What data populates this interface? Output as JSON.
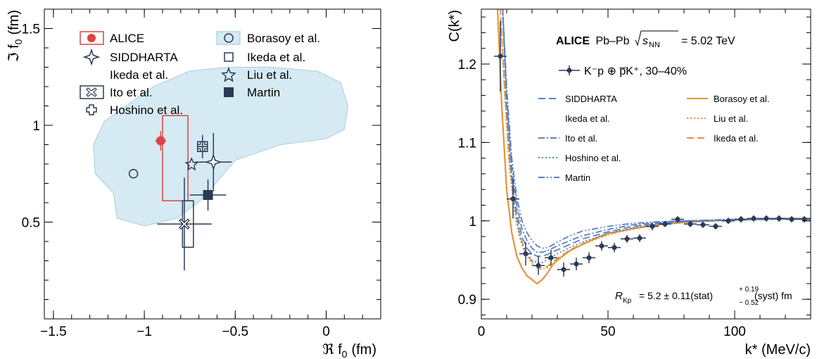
{
  "colors": {
    "alice": "#d94545",
    "data_markers": "#2b3a55",
    "borasoy_band": "#d6eaf3",
    "borasoy_band_edge": "#a9cce0",
    "theory_blue": "#5b82c2",
    "theory_orange": "#e2953b"
  },
  "chart_data": [
    {
      "type": "scatter",
      "xlabel": "ℜ f",
      "xlabel_sub": "0",
      "xlabel_unit": "(fm)",
      "ylabel": "ℑ f",
      "ylabel_sub": "0",
      "ylabel_unit": "(fm)",
      "xlim": [
        -1.55,
        0.3
      ],
      "ylim": [
        0.0,
        1.6
      ],
      "xticks": [
        -1.5,
        -1,
        -0.5,
        0
      ],
      "xtick_labels": [
        "−1.5",
        "−1",
        "−0.5",
        "0"
      ],
      "yticks": [
        0.5,
        1,
        1.5
      ],
      "ytick_labels": [
        "0.5",
        "1",
        "1.5"
      ],
      "legend": [
        {
          "label": "ALICE",
          "marker": "filled-circle-box"
        },
        {
          "label": "SIDDHARTA",
          "marker": "star4"
        },
        {
          "label": "Ikeda et al.",
          "marker": "none"
        },
        {
          "label": "Ito et al.",
          "marker": "cross-box"
        },
        {
          "label": "Hoshino et al.",
          "marker": "open-cross"
        },
        {
          "label": "Borasoy et al.",
          "marker": "band-circle"
        },
        {
          "label": "Ikeda et al.",
          "marker": "open-square"
        },
        {
          "label": "Liu et al.",
          "marker": "open-star"
        },
        {
          "label": "Martin",
          "marker": "filled-square"
        }
      ],
      "band_outline": [
        [
          -1.17,
          0.65
        ],
        [
          -1.27,
          0.75
        ],
        [
          -1.28,
          0.9
        ],
        [
          -1.22,
          1.02
        ],
        [
          -1.1,
          1.1
        ],
        [
          -0.95,
          1.2
        ],
        [
          -0.75,
          1.28
        ],
        [
          -0.55,
          1.3
        ],
        [
          -0.3,
          1.3
        ],
        [
          -0.05,
          1.28
        ],
        [
          0.08,
          1.22
        ],
        [
          0.12,
          1.1
        ],
        [
          0.1,
          0.98
        ],
        [
          0.0,
          0.93
        ],
        [
          -0.25,
          0.9
        ],
        [
          -0.5,
          0.82
        ],
        [
          -0.68,
          0.62
        ],
        [
          -0.82,
          0.52
        ],
        [
          -1.0,
          0.48
        ],
        [
          -1.15,
          0.52
        ],
        [
          -1.17,
          0.65
        ]
      ],
      "points": [
        {
          "name": "ALICE",
          "x": -0.91,
          "y": 0.92,
          "marker": "filled-circle",
          "ex": 0.03,
          "ey": 0.05,
          "box": {
            "x0": -0.9,
            "x1": -0.76,
            "y0": 0.61,
            "y1": 1.05
          }
        },
        {
          "name": "Borasoy et al.",
          "x": -1.06,
          "y": 0.75,
          "marker": "open-circle"
        },
        {
          "name": "SIDDHARTA",
          "x": -0.62,
          "y": 0.81,
          "marker": "star4",
          "ex": 0.1,
          "ey": 0.15
        },
        {
          "name": "Ikeda et al.",
          "x": -0.68,
          "y": 0.89,
          "marker": "open-square",
          "ex": 0.03,
          "ey": 0.06
        },
        {
          "name": "Liu et al.",
          "x": -0.74,
          "y": 0.8,
          "marker": "open-star"
        },
        {
          "name": "Martin",
          "x": -0.65,
          "y": 0.64,
          "marker": "filled-square",
          "ex": 0.1,
          "ey": 0.08
        },
        {
          "name": "Ito et al.",
          "x": -0.78,
          "y": 0.49,
          "marker": "cross-box",
          "ex": 0.15,
          "ey": 0.24,
          "box": {
            "x0": -0.79,
            "x1": -0.73,
            "y0": 0.37,
            "y1": 0.61
          }
        },
        {
          "name": "Hoshino et al.",
          "x": -0.68,
          "y": 0.89,
          "marker": "open-cross"
        }
      ]
    },
    {
      "type": "line",
      "xlabel": "k* (MeV/c)",
      "ylabel": "C(k*)",
      "xlim": [
        0,
        130
      ],
      "ylim": [
        0.875,
        1.27
      ],
      "xticks": [
        0,
        50,
        100
      ],
      "xtick_labels": [
        "0",
        "50",
        "100"
      ],
      "yticks": [
        0.9,
        1.0,
        1.1,
        1.2
      ],
      "ytick_labels": [
        "0.9",
        "1",
        "1.1",
        "1.2"
      ],
      "header": {
        "bold": "ALICE",
        "rest": "Pb–Pb",
        "energy": "= 5.02 TeV",
        "sqrt": "s",
        "sqrt_sub": "NN"
      },
      "data_label": "K⁻p ⊕ p̅K⁺,  30–40%",
      "legend": [
        {
          "label": "SIDDHARTA",
          "style": "dash",
          "color": "theory_blue"
        },
        {
          "label": "Ikeda et al.",
          "style": "none",
          "color": "theory_blue"
        },
        {
          "label": "Ito et al.",
          "style": "dashdot",
          "color": "theory_blue"
        },
        {
          "label": "Hoshino et al.",
          "style": "dot",
          "color": "theory_blue"
        },
        {
          "label": "Martin",
          "style": "dashdotdot",
          "color": "theory_blue"
        },
        {
          "label": "Borasoy et al.",
          "style": "solid",
          "color": "theory_orange"
        },
        {
          "label": "Liu et al.",
          "style": "dot",
          "color": "theory_orange"
        },
        {
          "label": "Ikeda et al.",
          "style": "dash",
          "color": "theory_orange"
        }
      ],
      "annotation": {
        "R": "R",
        "sub": "Kp",
        "value": "= 5.2 ± 0.11(stat)",
        "up": "+ 0.19",
        "down": "− 0.52",
        "tail": "(syst) fm"
      },
      "data_points": [
        {
          "x": 7.5,
          "y": 1.21,
          "ey": 0.045
        },
        {
          "x": 12.5,
          "y": 1.028,
          "ey": 0.025
        },
        {
          "x": 17.5,
          "y": 0.958,
          "ey": 0.015
        },
        {
          "x": 22.5,
          "y": 0.943,
          "ey": 0.012
        },
        {
          "x": 27.5,
          "y": 0.953,
          "ey": 0.01
        },
        {
          "x": 32.5,
          "y": 0.938,
          "ey": 0.009
        },
        {
          "x": 37.5,
          "y": 0.945,
          "ey": 0.008
        },
        {
          "x": 42.5,
          "y": 0.953,
          "ey": 0.007
        },
        {
          "x": 47.5,
          "y": 0.968,
          "ey": 0.006
        },
        {
          "x": 52.5,
          "y": 0.966,
          "ey": 0.006
        },
        {
          "x": 57.5,
          "y": 0.977,
          "ey": 0.005
        },
        {
          "x": 62.5,
          "y": 0.978,
          "ey": 0.005
        },
        {
          "x": 67.5,
          "y": 0.993,
          "ey": 0.005
        },
        {
          "x": 72.5,
          "y": 0.996,
          "ey": 0.004
        },
        {
          "x": 77.5,
          "y": 1.002,
          "ey": 0.004
        },
        {
          "x": 82.5,
          "y": 0.996,
          "ey": 0.004
        },
        {
          "x": 87.5,
          "y": 0.995,
          "ey": 0.004
        },
        {
          "x": 92.5,
          "y": 0.993,
          "ey": 0.004
        },
        {
          "x": 97.5,
          "y": 1.0,
          "ey": 0.004
        },
        {
          "x": 102.5,
          "y": 1.002,
          "ey": 0.004
        },
        {
          "x": 107.5,
          "y": 1.003,
          "ey": 0.004
        },
        {
          "x": 112.5,
          "y": 1.003,
          "ey": 0.004
        },
        {
          "x": 117.5,
          "y": 1.003,
          "ey": 0.004
        },
        {
          "x": 122.5,
          "y": 1.002,
          "ey": 0.004
        },
        {
          "x": 127.5,
          "y": 1.002,
          "ey": 0.004
        }
      ],
      "series": [
        {
          "name": "Borasoy et al.",
          "style": "solid",
          "color": "theory_orange",
          "x": [
            6,
            8,
            10,
            12,
            14,
            16,
            18,
            20,
            22,
            24,
            26,
            28,
            30,
            35,
            40,
            45,
            50,
            60,
            70,
            80,
            90,
            100,
            110,
            120,
            130
          ],
          "y": [
            1.3,
            1.15,
            1.04,
            0.985,
            0.955,
            0.94,
            0.93,
            0.925,
            0.92,
            0.925,
            0.933,
            0.943,
            0.95,
            0.962,
            0.97,
            0.978,
            0.984,
            0.99,
            0.995,
            0.998,
            1.0,
            1.001,
            1.002,
            1.003,
            1.003
          ]
        },
        {
          "name": "Liu et al.",
          "style": "dot",
          "color": "theory_orange",
          "x": [
            7,
            9,
            11,
            13,
            15,
            17,
            20,
            23,
            26,
            30,
            35,
            40,
            50,
            60,
            70,
            80,
            100,
            130
          ],
          "y": [
            1.3,
            1.17,
            1.07,
            1.01,
            0.98,
            0.96,
            0.945,
            0.938,
            0.94,
            0.95,
            0.962,
            0.97,
            0.982,
            0.99,
            0.995,
            0.998,
            1.001,
            1.003
          ]
        },
        {
          "name": "Ikeda et al.",
          "style": "dash",
          "color": "theory_orange",
          "x": [
            7,
            9,
            11,
            13,
            15,
            17,
            20,
            23,
            26,
            30,
            35,
            40,
            50,
            60,
            70,
            80,
            100,
            130
          ],
          "y": [
            1.3,
            1.18,
            1.08,
            1.02,
            0.985,
            0.963,
            0.948,
            0.94,
            0.942,
            0.952,
            0.963,
            0.971,
            0.983,
            0.991,
            0.996,
            0.999,
            1.001,
            1.003
          ]
        },
        {
          "name": "SIDDHARTA",
          "style": "dash",
          "color": "theory_blue",
          "x": [
            8,
            10,
            12,
            14,
            16,
            18,
            20,
            22,
            24,
            26,
            28,
            30,
            35,
            40,
            50,
            60,
            70,
            80,
            100,
            130
          ],
          "y": [
            1.3,
            1.15,
            1.06,
            1.01,
            0.98,
            0.965,
            0.958,
            0.955,
            0.955,
            0.957,
            0.96,
            0.963,
            0.97,
            0.977,
            0.986,
            0.993,
            0.997,
            0.999,
            1.001,
            1.003
          ]
        },
        {
          "name": "Ito et al.",
          "style": "dashdot",
          "color": "theory_blue",
          "x": [
            8,
            10,
            12,
            14,
            16,
            18,
            20,
            22,
            24,
            26,
            28,
            30,
            35,
            40,
            50,
            60,
            70,
            80,
            100,
            130
          ],
          "y": [
            1.3,
            1.16,
            1.07,
            1.02,
            0.99,
            0.975,
            0.965,
            0.96,
            0.96,
            0.962,
            0.965,
            0.968,
            0.975,
            0.981,
            0.989,
            0.995,
            0.998,
            1.0,
            1.002,
            1.003
          ]
        },
        {
          "name": "Hoshino et al.",
          "style": "dot",
          "color": "theory_blue",
          "x": [
            8,
            10,
            12,
            14,
            16,
            18,
            20,
            22,
            24,
            26,
            28,
            30,
            35,
            40,
            50,
            60,
            70,
            80,
            100,
            130
          ],
          "y": [
            1.3,
            1.14,
            1.05,
            1.0,
            0.972,
            0.958,
            0.95,
            0.947,
            0.947,
            0.95,
            0.954,
            0.958,
            0.966,
            0.973,
            0.984,
            0.991,
            0.996,
            0.999,
            1.001,
            1.003
          ]
        },
        {
          "name": "Martin",
          "style": "dashdotdot",
          "color": "theory_blue",
          "x": [
            8,
            10,
            12,
            14,
            16,
            18,
            20,
            22,
            24,
            26,
            28,
            30,
            35,
            40,
            50,
            60,
            70,
            80,
            100,
            130
          ],
          "y": [
            1.3,
            1.17,
            1.08,
            1.03,
            1.0,
            0.985,
            0.975,
            0.968,
            0.965,
            0.966,
            0.969,
            0.973,
            0.981,
            0.987,
            0.993,
            0.997,
            0.999,
            1.0,
            1.002,
            1.003
          ]
        }
      ]
    }
  ]
}
